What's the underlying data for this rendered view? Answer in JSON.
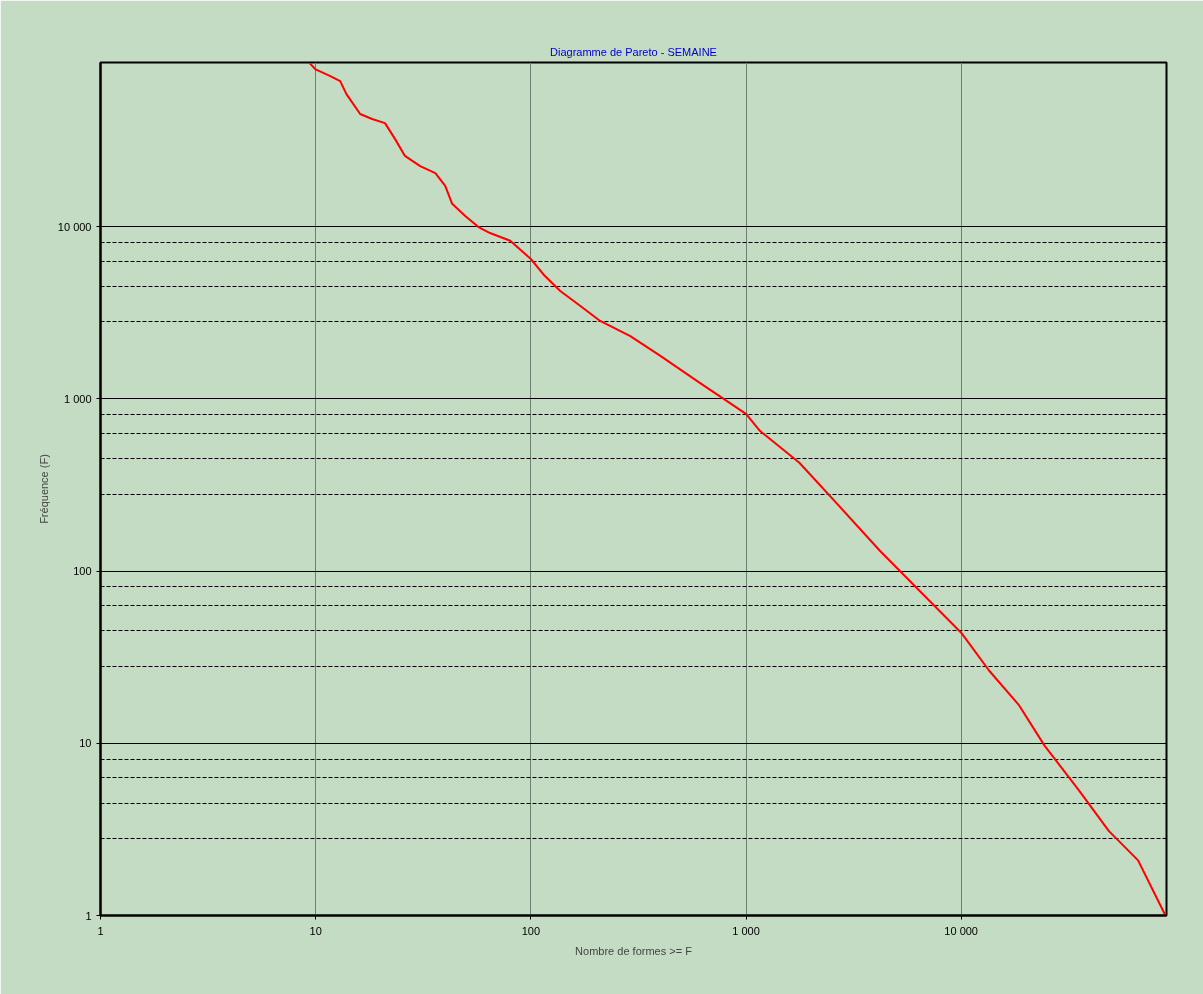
{
  "chart_data": {
    "type": "line",
    "title": "Diagramme de Pareto - SEMAINE",
    "xlabel": "Nombre de formes >= F",
    "ylabel": "Fréquence (F)",
    "log": "xy",
    "grid": true,
    "xlim": [
      1,
      90000
    ],
    "ylim": [
      1,
      90000
    ],
    "xticks": [
      1,
      10,
      100,
      {
        "value": 1000,
        "label": "1 000"
      },
      {
        "value": 10000,
        "label": "10 000"
      }
    ],
    "yticks": [
      1,
      {
        "value": 2.8,
        "label": null
      },
      {
        "value": 4.5,
        "label": null
      },
      {
        "value": 6.3,
        "label": null
      },
      {
        "value": 8.1,
        "label": null
      },
      10,
      {
        "value": 28,
        "label": null
      },
      {
        "value": 45,
        "label": null
      },
      {
        "value": 63,
        "label": null
      },
      {
        "value": 81,
        "label": null
      },
      100,
      {
        "value": 280,
        "label": null
      },
      {
        "value": 450,
        "label": null
      },
      {
        "value": 630,
        "label": null
      },
      {
        "value": 810,
        "label": null
      },
      {
        "value": 1000,
        "label": "1 000"
      },
      {
        "value": 2800,
        "label": null
      },
      {
        "value": 4500,
        "label": null
      },
      {
        "value": 6300,
        "label": null
      },
      {
        "value": 8100,
        "label": null
      },
      {
        "value": 10000,
        "label": "10 000"
      }
    ],
    "series": [
      {
        "color": "#ff0000",
        "x": [
          9.4,
          10,
          11.7,
          13,
          13.9,
          16.1,
          18.3,
          21,
          23.4,
          26,
          30.6,
          36,
          40,
          43.1,
          49.4,
          56.9,
          64.6,
          80.2,
          100,
          116,
          137,
          170,
          210,
          290,
          400,
          610,
          1000,
          1160,
          1770,
          2700,
          4200,
          6400,
          10000,
          13500,
          18600,
          24400,
          35400,
          48500,
          66400,
          89000
        ],
        "values": [
          89000,
          82000,
          75000,
          70200,
          59000,
          45200,
          42300,
          40000,
          32300,
          25800,
          22500,
          20500,
          17300,
          13600,
          11600,
          10000,
          9200,
          8300,
          6500,
          5190,
          4240,
          3470,
          2840,
          2320,
          1780,
          1240,
          820,
          653,
          426,
          240,
          131,
          77,
          43.9,
          26.4,
          16.6,
          9.7,
          5.3,
          3.1,
          2.09,
          1
        ]
      }
    ]
  }
}
